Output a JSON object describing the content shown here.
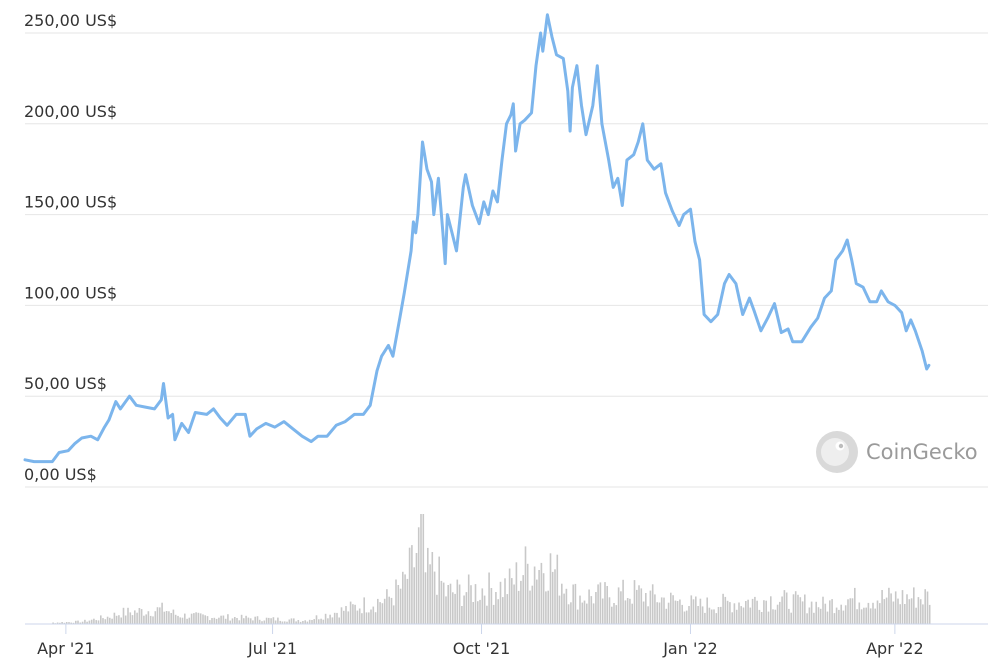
{
  "watermark": {
    "text": "CoinGecko",
    "icon": "gecko-icon"
  },
  "colors": {
    "line": "#7cb5ec",
    "grid": "#e6e6e6",
    "volume": "#c8c8c8",
    "axis": "#ccd6eb"
  },
  "chart_data": [
    {
      "type": "line",
      "x_range": [
        "2021-03-14",
        "2022-05-12"
      ],
      "ylim": [
        0,
        250
      ],
      "y_ticks": [
        0,
        50,
        100,
        150,
        200,
        250
      ],
      "y_tick_labels": [
        "0,00 US$",
        "50,00 US$",
        "100,00 US$",
        "150,00 US$",
        "200,00 US$",
        "250,00 US$"
      ],
      "x_ticks": [
        "2021-04-01",
        "2021-07-01",
        "2021-10-01",
        "2022-01-01",
        "2022-04-01"
      ],
      "x_tick_labels": [
        "Apr '21",
        "Jul '21",
        "Oct '21",
        "Jan '22",
        "Apr '22"
      ],
      "grid": true,
      "series": [
        {
          "values": [
            [
              "2021-03-14",
              15
            ],
            [
              "2021-03-18",
              14
            ],
            [
              "2021-03-22",
              14
            ],
            [
              "2021-03-26",
              14
            ],
            [
              "2021-03-29",
              19
            ],
            [
              "2021-04-02",
              20
            ],
            [
              "2021-04-05",
              24
            ],
            [
              "2021-04-08",
              27
            ],
            [
              "2021-04-12",
              28
            ],
            [
              "2021-04-15",
              26
            ],
            [
              "2021-04-18",
              33
            ],
            [
              "2021-04-20",
              37
            ],
            [
              "2021-04-23",
              47
            ],
            [
              "2021-04-25",
              43
            ],
            [
              "2021-04-29",
              50
            ],
            [
              "2021-05-02",
              45
            ],
            [
              "2021-05-06",
              44
            ],
            [
              "2021-05-10",
              43
            ],
            [
              "2021-05-13",
              48
            ],
            [
              "2021-05-14",
              57
            ],
            [
              "2021-05-16",
              38
            ],
            [
              "2021-05-18",
              40
            ],
            [
              "2021-05-19",
              26
            ],
            [
              "2021-05-22",
              35
            ],
            [
              "2021-05-25",
              30
            ],
            [
              "2021-05-28",
              41
            ],
            [
              "2021-06-02",
              40
            ],
            [
              "2021-06-05",
              43
            ],
            [
              "2021-06-08",
              38
            ],
            [
              "2021-06-11",
              34
            ],
            [
              "2021-06-15",
              40
            ],
            [
              "2021-06-19",
              40
            ],
            [
              "2021-06-21",
              28
            ],
            [
              "2021-06-24",
              32
            ],
            [
              "2021-06-28",
              35
            ],
            [
              "2021-07-02",
              33
            ],
            [
              "2021-07-06",
              36
            ],
            [
              "2021-07-10",
              32
            ],
            [
              "2021-07-14",
              28
            ],
            [
              "2021-07-18",
              25
            ],
            [
              "2021-07-21",
              28
            ],
            [
              "2021-07-25",
              28
            ],
            [
              "2021-07-29",
              34
            ],
            [
              "2021-08-02",
              36
            ],
            [
              "2021-08-06",
              40
            ],
            [
              "2021-08-10",
              40
            ],
            [
              "2021-08-13",
              45
            ],
            [
              "2021-08-16",
              64
            ],
            [
              "2021-08-18",
              72
            ],
            [
              "2021-08-21",
              78
            ],
            [
              "2021-08-23",
              72
            ],
            [
              "2021-08-26",
              93
            ],
            [
              "2021-08-28",
              107
            ],
            [
              "2021-08-31",
              130
            ],
            [
              "2021-09-01",
              146
            ],
            [
              "2021-09-02",
              140
            ],
            [
              "2021-09-03",
              150
            ],
            [
              "2021-09-05",
              190
            ],
            [
              "2021-09-07",
              175
            ],
            [
              "2021-09-09",
              168
            ],
            [
              "2021-09-10",
              150
            ],
            [
              "2021-09-12",
              170
            ],
            [
              "2021-09-14",
              140
            ],
            [
              "2021-09-15",
              123
            ],
            [
              "2021-09-16",
              150
            ],
            [
              "2021-09-18",
              140
            ],
            [
              "2021-09-20",
              130
            ],
            [
              "2021-09-23",
              165
            ],
            [
              "2021-09-24",
              172
            ],
            [
              "2021-09-27",
              155
            ],
            [
              "2021-09-30",
              145
            ],
            [
              "2021-10-02",
              157
            ],
            [
              "2021-10-04",
              150
            ],
            [
              "2021-10-06",
              163
            ],
            [
              "2021-10-08",
              157
            ],
            [
              "2021-10-10",
              180
            ],
            [
              "2021-10-12",
              200
            ],
            [
              "2021-10-14",
              205
            ],
            [
              "2021-10-15",
              211
            ],
            [
              "2021-10-16",
              185
            ],
            [
              "2021-10-18",
              200
            ],
            [
              "2021-10-20",
              202
            ],
            [
              "2021-10-23",
              206
            ],
            [
              "2021-10-25",
              232
            ],
            [
              "2021-10-27",
              250
            ],
            [
              "2021-10-28",
              240
            ],
            [
              "2021-10-30",
              260
            ],
            [
              "2021-11-01",
              248
            ],
            [
              "2021-11-03",
              238
            ],
            [
              "2021-11-06",
              236
            ],
            [
              "2021-11-08",
              218
            ],
            [
              "2021-11-09",
              196
            ],
            [
              "2021-11-10",
              220
            ],
            [
              "2021-11-12",
              232
            ],
            [
              "2021-11-14",
              210
            ],
            [
              "2021-11-16",
              194
            ],
            [
              "2021-11-19",
              210
            ],
            [
              "2021-11-21",
              232
            ],
            [
              "2021-11-23",
              200
            ],
            [
              "2021-11-26",
              180
            ],
            [
              "2021-11-28",
              165
            ],
            [
              "2021-11-30",
              170
            ],
            [
              "2021-12-02",
              155
            ],
            [
              "2021-12-04",
              180
            ],
            [
              "2021-12-07",
              183
            ],
            [
              "2021-12-09",
              190
            ],
            [
              "2021-12-11",
              200
            ],
            [
              "2021-12-13",
              180
            ],
            [
              "2021-12-16",
              175
            ],
            [
              "2021-12-19",
              178
            ],
            [
              "2021-12-21",
              162
            ],
            [
              "2021-12-24",
              152
            ],
            [
              "2021-12-27",
              144
            ],
            [
              "2021-12-29",
              150
            ],
            [
              "2022-01-01",
              153
            ],
            [
              "2022-01-03",
              135
            ],
            [
              "2022-01-05",
              125
            ],
            [
              "2022-01-07",
              95
            ],
            [
              "2022-01-10",
              91
            ],
            [
              "2022-01-13",
              95
            ],
            [
              "2022-01-16",
              112
            ],
            [
              "2022-01-18",
              117
            ],
            [
              "2022-01-21",
              112
            ],
            [
              "2022-01-24",
              95
            ],
            [
              "2022-01-27",
              104
            ],
            [
              "2022-01-29",
              97
            ],
            [
              "2022-02-01",
              86
            ],
            [
              "2022-02-04",
              93
            ],
            [
              "2022-02-07",
              101
            ],
            [
              "2022-02-10",
              85
            ],
            [
              "2022-02-13",
              87
            ],
            [
              "2022-02-15",
              80
            ],
            [
              "2022-02-19",
              80
            ],
            [
              "2022-02-23",
              88
            ],
            [
              "2022-02-26",
              93
            ],
            [
              "2022-03-01",
              104
            ],
            [
              "2022-03-04",
              108
            ],
            [
              "2022-03-06",
              125
            ],
            [
              "2022-03-09",
              130
            ],
            [
              "2022-03-11",
              136
            ],
            [
              "2022-03-13",
              125
            ],
            [
              "2022-03-15",
              112
            ],
            [
              "2022-03-18",
              110
            ],
            [
              "2022-03-21",
              102
            ],
            [
              "2022-03-24",
              102
            ],
            [
              "2022-03-26",
              108
            ],
            [
              "2022-03-29",
              102
            ],
            [
              "2022-04-01",
              100
            ],
            [
              "2022-04-04",
              96
            ],
            [
              "2022-04-06",
              86
            ],
            [
              "2022-04-08",
              92
            ],
            [
              "2022-04-10",
              86
            ],
            [
              "2022-04-13",
              75
            ],
            [
              "2022-04-15",
              65
            ],
            [
              "2022-04-16",
              67
            ]
          ]
        }
      ]
    },
    {
      "type": "bar",
      "axis": "volume",
      "y_ticks": [],
      "values": [
        [
          "2021-03-25",
          1
        ],
        [
          "2021-04-08",
          2
        ],
        [
          "2021-04-20",
          6
        ],
        [
          "2021-04-25",
          9
        ],
        [
          "2021-05-14",
          12
        ],
        [
          "2021-05-20",
          7
        ],
        [
          "2021-07-15",
          3
        ],
        [
          "2021-08-15",
          18
        ],
        [
          "2021-08-20",
          20
        ],
        [
          "2021-08-27",
          30
        ],
        [
          "2021-09-01",
          50
        ],
        [
          "2021-09-05",
          80
        ],
        [
          "2021-09-06",
          40
        ],
        [
          "2021-09-10",
          45
        ],
        [
          "2021-09-15",
          25
        ],
        [
          "2021-10-12",
          30
        ],
        [
          "2021-10-20",
          45
        ],
        [
          "2021-10-29",
          50
        ],
        [
          "2021-11-12",
          22
        ],
        [
          "2021-12-07",
          25
        ],
        [
          "2021-12-20",
          20
        ],
        [
          "2022-01-05",
          15
        ],
        [
          "2022-01-12",
          16
        ],
        [
          "2022-02-05",
          20
        ],
        [
          "2022-03-01",
          15
        ],
        [
          "2022-03-10",
          20
        ],
        [
          "2022-04-15",
          22
        ]
      ]
    }
  ]
}
